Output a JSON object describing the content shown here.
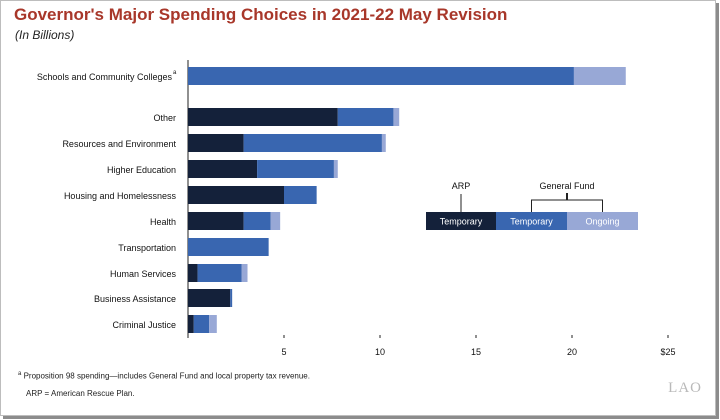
{
  "header": {
    "title": "Governor's Major Spending Choices in 2021-22 May Revision",
    "subtitle": "(In Billions)"
  },
  "footnotes": {
    "a_marker": "a",
    "a_text": "Proposition 98 spending—includes General Fund and local property tax revenue.",
    "arp_text": "ARP = American Rescue Plan."
  },
  "logo": "LAO",
  "legend_headers": {
    "arp": "ARP",
    "general_fund": "General Fund"
  },
  "colors": {
    "arp_temporary": "#14213a",
    "gf_temporary": "#3966b0",
    "gf_ongoing": "#98a8d6",
    "title": "#a8372a"
  },
  "chart_data": {
    "type": "bar",
    "orientation": "horizontal",
    "stacked": true,
    "categories": [
      "Schools and Community Colleges",
      "Other",
      "Resources and Environment",
      "Higher Education",
      "Housing and Homelessness",
      "Health",
      "Transportation",
      "Human Services",
      "Business Assistance",
      "Criminal Justice"
    ],
    "category_superscripts": [
      "a",
      "",
      "",
      "",
      "",
      "",
      "",
      "",
      "",
      ""
    ],
    "series": [
      {
        "name": "Temporary",
        "group": "ARP",
        "color": "#14213a",
        "values": [
          0,
          7.8,
          2.9,
          3.6,
          5.0,
          2.9,
          0,
          0.5,
          2.2,
          0.3
        ]
      },
      {
        "name": "Temporary",
        "group": "General Fund",
        "color": "#3966b0",
        "values": [
          20.1,
          2.9,
          7.2,
          4.0,
          1.7,
          1.4,
          4.2,
          2.3,
          0.1,
          0.8
        ]
      },
      {
        "name": "Ongoing",
        "group": "General Fund",
        "color": "#98a8d6",
        "values": [
          2.7,
          0.3,
          0.2,
          0.2,
          0,
          0.5,
          0,
          0.3,
          0,
          0.4
        ]
      }
    ],
    "xlim": [
      0,
      25
    ],
    "xticks": [
      5,
      10,
      15,
      20,
      25
    ],
    "xtick_labels": [
      "5",
      "10",
      "15",
      "20",
      "$25"
    ],
    "xlabel": "",
    "ylabel": "",
    "grid": false,
    "legend_position": "right"
  }
}
